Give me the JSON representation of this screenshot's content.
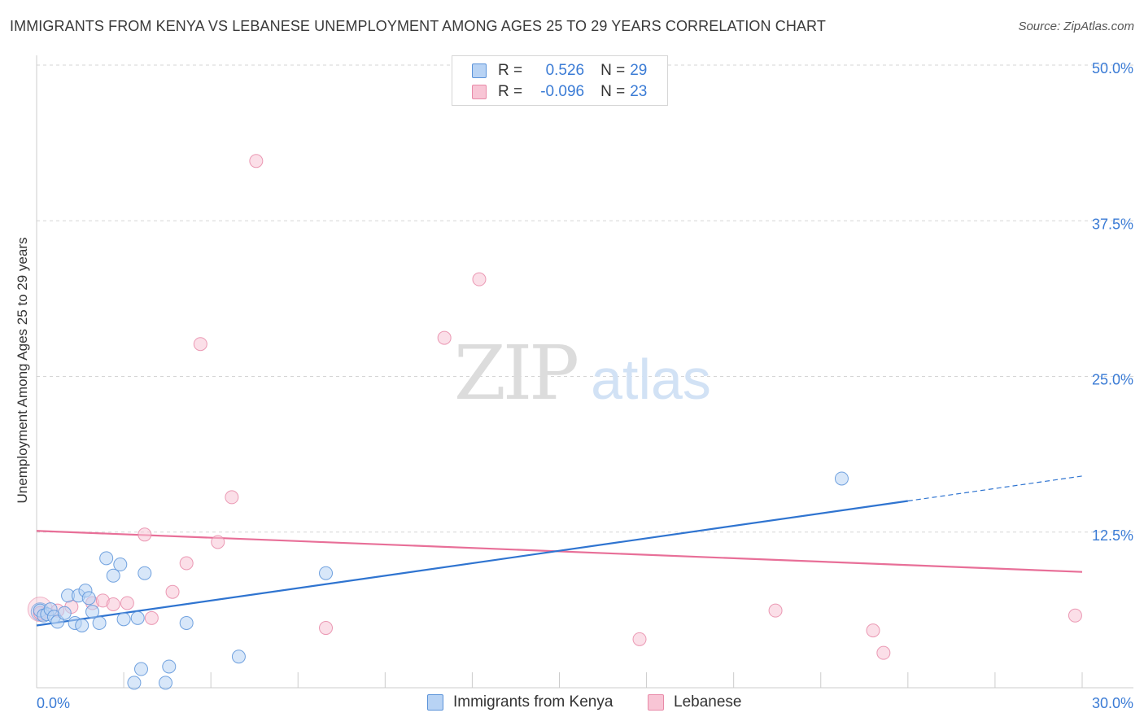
{
  "title": "IMMIGRANTS FROM KENYA VS LEBANESE UNEMPLOYMENT AMONG AGES 25 TO 29 YEARS CORRELATION CHART",
  "source": "Source: ZipAtlas.com",
  "watermark": {
    "zip": "ZIP",
    "atlas": "atlas"
  },
  "legend": {
    "r_label": "R =",
    "n_label": "N =",
    "rows": [
      {
        "series": "Immigrants from Kenya",
        "r": "0.526",
        "n": "29"
      },
      {
        "series": "Lebanese",
        "r": "-0.096",
        "n": "23"
      }
    ]
  },
  "colors": {
    "blue_fill": "#b8d3f4",
    "blue_stroke": "#5b93d9",
    "blue_line": "#2f74d0",
    "pink_fill": "#f8c5d5",
    "pink_stroke": "#e88aa8",
    "pink_line": "#e86f98",
    "tick_label": "#3a7bd5",
    "grid": "#d5d5d5"
  },
  "chart_data": {
    "type": "scatter",
    "title": "IMMIGRANTS FROM KENYA VS LEBANESE UNEMPLOYMENT AMONG AGES 25 TO 29 YEARS CORRELATION CHART",
    "xlabel": "",
    "ylabel": "Unemployment Among Ages 25 to 29 years",
    "xlim": [
      0,
      30
    ],
    "ylim": [
      0,
      50
    ],
    "x_tick_labels": [
      {
        "value": 0,
        "label": "0.0%"
      },
      {
        "value": 30,
        "label": "30.0%"
      }
    ],
    "y_tick_labels": [
      {
        "value": 12.5,
        "label": "12.5%"
      },
      {
        "value": 25,
        "label": "25.0%"
      },
      {
        "value": 37.5,
        "label": "37.5%"
      },
      {
        "value": 50,
        "label": "50.0%"
      }
    ],
    "grid": true,
    "series": [
      {
        "name": "Immigrants from Kenya",
        "color": "blue",
        "points": [
          [
            0.1,
            6.2
          ],
          [
            0.2,
            5.8
          ],
          [
            0.3,
            5.9
          ],
          [
            0.4,
            6.3
          ],
          [
            0.5,
            5.7
          ],
          [
            0.6,
            5.3
          ],
          [
            0.8,
            6.0
          ],
          [
            0.9,
            7.4
          ],
          [
            1.1,
            5.2
          ],
          [
            1.2,
            7.4
          ],
          [
            1.3,
            5.0
          ],
          [
            1.4,
            7.8
          ],
          [
            1.5,
            7.2
          ],
          [
            1.6,
            6.1
          ],
          [
            1.8,
            5.2
          ],
          [
            2.0,
            10.4
          ],
          [
            2.2,
            9.0
          ],
          [
            2.4,
            9.9
          ],
          [
            2.5,
            5.5
          ],
          [
            2.8,
            0.4
          ],
          [
            2.9,
            5.6
          ],
          [
            3.0,
            1.5
          ],
          [
            3.1,
            9.2
          ],
          [
            3.7,
            0.4
          ],
          [
            3.8,
            1.7
          ],
          [
            4.3,
            5.2
          ],
          [
            5.8,
            2.5
          ],
          [
            8.3,
            9.2
          ],
          [
            23.1,
            16.8
          ]
        ],
        "trend": {
          "x": [
            0,
            25
          ],
          "y": [
            5.0,
            15.0
          ],
          "dashed_extension": {
            "x": [
              25,
              30
            ],
            "y": [
              15.0,
              17.0
            ]
          }
        }
      },
      {
        "name": "Lebanese",
        "color": "pink",
        "points": [
          [
            0.1,
            6.0
          ],
          [
            0.6,
            6.2
          ],
          [
            1.0,
            6.5
          ],
          [
            1.6,
            6.8
          ],
          [
            1.9,
            7.0
          ],
          [
            2.2,
            6.7
          ],
          [
            2.6,
            6.8
          ],
          [
            3.1,
            12.3
          ],
          [
            3.3,
            5.6
          ],
          [
            3.9,
            7.7
          ],
          [
            4.3,
            10.0
          ],
          [
            4.7,
            27.6
          ],
          [
            5.2,
            11.7
          ],
          [
            5.6,
            15.3
          ],
          [
            6.3,
            42.3
          ],
          [
            8.3,
            4.8
          ],
          [
            11.7,
            28.1
          ],
          [
            12.7,
            32.8
          ],
          [
            17.3,
            3.9
          ],
          [
            21.2,
            6.2
          ],
          [
            24.0,
            4.6
          ],
          [
            24.3,
            2.8
          ],
          [
            29.8,
            5.8
          ]
        ],
        "trend": {
          "x": [
            0,
            30
          ],
          "y": [
            12.6,
            9.3
          ]
        }
      }
    ]
  }
}
